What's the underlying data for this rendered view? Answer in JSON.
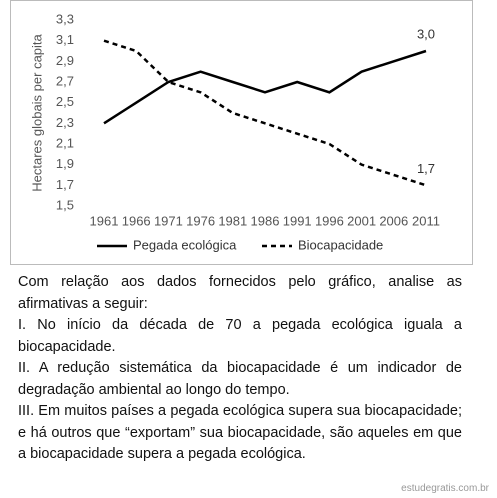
{
  "chart_data": {
    "type": "line",
    "y_label": "Hectares globais per capita",
    "categories": [
      "1961",
      "1966",
      "1971",
      "1976",
      "1981",
      "1986",
      "1991",
      "1996",
      "2001",
      "2006",
      "2011"
    ],
    "series": [
      {
        "name": "Pegada ecológica",
        "color": "#000000",
        "line_style": "solid",
        "values": [
          2.3,
          2.5,
          2.7,
          2.8,
          2.7,
          2.6,
          2.7,
          2.6,
          2.8,
          2.9,
          3.0
        ],
        "value_labels": [
          null,
          null,
          null,
          null,
          null,
          null,
          null,
          null,
          null,
          null,
          "3,0"
        ]
      },
      {
        "name": "Biocapacidade",
        "color": "#000000",
        "line_style": "dashed",
        "values": [
          3.1,
          3.0,
          2.7,
          2.6,
          2.4,
          2.3,
          2.2,
          2.1,
          1.9,
          1.8,
          1.7
        ],
        "value_labels": [
          null,
          null,
          null,
          null,
          null,
          null,
          null,
          null,
          null,
          null,
          "1,7"
        ]
      }
    ],
    "ylim": [
      1.5,
      3.3
    ],
    "yticks": [
      {
        "value": 1.5,
        "label": "1,5"
      },
      {
        "value": 1.7,
        "label": "1,7"
      },
      {
        "value": 1.9,
        "label": "1,9"
      },
      {
        "value": 2.1,
        "label": "2,1"
      },
      {
        "value": 2.3,
        "label": "2,3"
      },
      {
        "value": 2.5,
        "label": "2,5"
      },
      {
        "value": 2.7,
        "label": "2,7"
      },
      {
        "value": 2.9,
        "label": "2,9"
      },
      {
        "value": 3.1,
        "label": "3,1"
      },
      {
        "value": 3.3,
        "label": "3,3"
      }
    ],
    "grid": false,
    "legend": "bottom"
  },
  "document": {
    "paragraphs": [
      "Com relação aos dados fornecidos pelo gráfico, analise as afirmativas a seguir:",
      "I. No início da década de 70 a pegada ecológica iguala a biocapacidade.",
      "II. A redução sistemática da biocapacidade é um indicador de degradação ambiental ao longo do tempo.",
      "III. Em muitos países a pegada ecológica supera sua biocapacidade; e há outros que “exportam” sua biocapacidade, são aqueles em que a biocapacidade supera a pegada ecológica."
    ]
  },
  "watermark": "estudegratis.com.br"
}
